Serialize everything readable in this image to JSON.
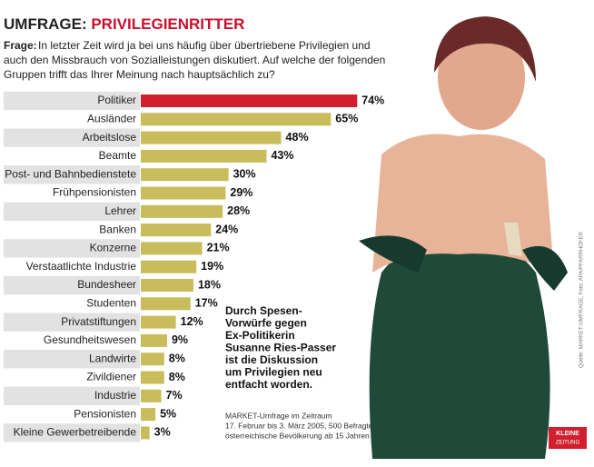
{
  "chart_data": {
    "type": "hbar",
    "title_lead": "UMFRAGE:",
    "title": "PRIVILEGIENRITTER",
    "question_label": "Frage:",
    "question_lines": [
      "In letzter Zeit wird ja bei uns häufig über übertriebene Privilegien und",
      "auch den Missbrauch von Sozialleistungen diskutiert. Auf welche der folgenden",
      "Gruppen trifft das Ihrer Meinung nach hauptsächlich zu?"
    ],
    "categories": [
      "Politiker",
      "Ausländer",
      "Arbeitslose",
      "Beamte",
      "Post- und Bahnbedienstete",
      "Frühpensionisten",
      "Lehrer",
      "Banken",
      "Konzerne",
      "Verstaatlichte Industrie",
      "Bundesheer",
      "Studenten",
      "Privatstiftungen",
      "Gesundheitswesen",
      "Landwirte",
      "Zivildiener",
      "Industrie",
      "Pensionisten",
      "Kleine Gewerbetreibende"
    ],
    "values": [
      74,
      65,
      48,
      43,
      30,
      29,
      28,
      24,
      21,
      19,
      18,
      17,
      12,
      9,
      8,
      8,
      7,
      5,
      3
    ],
    "value_labels": [
      "74%",
      "65%",
      "48%",
      "43%",
      "30%",
      "29%",
      "28%",
      "24%",
      "21%",
      "19%",
      "18%",
      "17%",
      "12%",
      "9%",
      "8%",
      "8%",
      "7%",
      "5%",
      "3%"
    ],
    "colors": [
      "#d01f2e",
      "#c9bc5c",
      "#c9bc5c",
      "#c9bc5c",
      "#c9bc5c",
      "#c9bc5c",
      "#c9bc5c",
      "#c9bc5c",
      "#c9bc5c",
      "#c9bc5c",
      "#c9bc5c",
      "#c9bc5c",
      "#c9bc5c",
      "#c9bc5c",
      "#c9bc5c",
      "#c9bc5c",
      "#c9bc5c",
      "#c9bc5c",
      "#c9bc5c"
    ],
    "annotation_lines": [
      "Durch Spesen-",
      "Vorwürfe gegen",
      "Ex-Politikerin",
      "Susanne Ries-Passer",
      "ist die Diskussion",
      "um Privilegien neu",
      "entfacht worden."
    ],
    "source_lines": [
      "MARKET-Umfrage im Zeitraum",
      "17. Februar bis 3. März 2005, 500 Befragte,",
      "österreichische Bevölkerung ab 15 Jahren"
    ],
    "credit": "Quelle: MARKET-UMFRAGE, Foto: APA/PFARRHOFER",
    "logo_lines": [
      "KLEINE",
      "ZEITUNG"
    ]
  }
}
